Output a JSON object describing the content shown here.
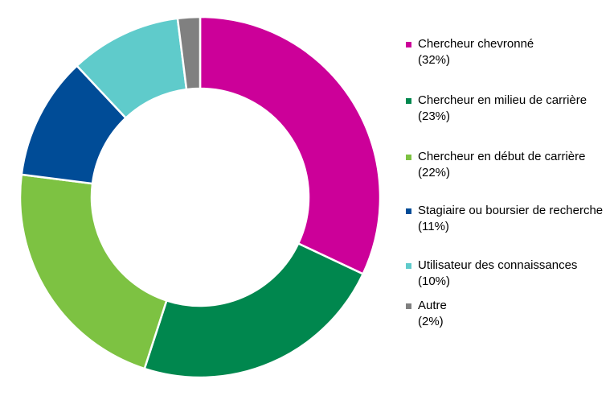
{
  "chart_data": {
    "type": "donut",
    "categories": [
      "Chercheur chevronné",
      "Chercheur en milieu de carrière",
      "Chercheur en début de carrière",
      "Stagiaire ou boursier de recherche",
      "Utilisateur des connaissances",
      "Autre"
    ],
    "values": [
      32,
      23,
      22,
      11,
      10,
      2
    ],
    "value_labels": [
      "(32%)",
      "(23%)",
      "(22%)",
      "(11%)",
      "(10%)",
      "(2%)"
    ],
    "colors": [
      "#cc0099",
      "#00874e",
      "#7dc242",
      "#004c97",
      "#5fcbcb",
      "#808080"
    ],
    "legend": "right"
  }
}
